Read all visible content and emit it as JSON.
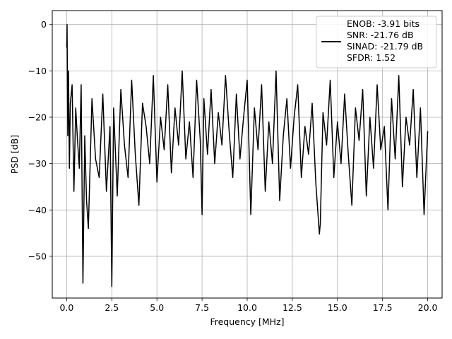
{
  "chart_data": {
    "type": "line",
    "title": "",
    "xlabel": "Frequency [MHz]",
    "ylabel": "PSD [dB]",
    "xlim": [
      -0.8,
      20.8
    ],
    "ylim": [
      -59,
      3
    ],
    "xticks": [
      0.0,
      2.5,
      5.0,
      7.5,
      10.0,
      12.5,
      15.0,
      17.5,
      20.0
    ],
    "xtick_labels": [
      "0.0",
      "2.5",
      "5.0",
      "7.5",
      "10.0",
      "12.5",
      "15.0",
      "17.5",
      "20.0"
    ],
    "yticks": [
      0,
      -10,
      -20,
      -30,
      -40,
      -50
    ],
    "ytick_labels": [
      "0",
      "−10",
      "−20",
      "−30",
      "−40",
      "−50"
    ],
    "grid": true,
    "legend_position": "top-right",
    "series": [
      {
        "color": "#000000",
        "legend_lines": [
          "ENOB: -3.91 bits",
          "SNR: -21.76 dB",
          "SINAD: -21.79 dB",
          "SFDR: 1.52"
        ],
        "x": [
          0.0,
          0.02,
          0.04,
          0.06,
          0.1,
          0.15,
          0.2,
          0.3,
          0.4,
          0.5,
          0.6,
          0.7,
          0.8,
          0.9,
          1.0,
          1.1,
          1.2,
          1.4,
          1.6,
          1.8,
          2.0,
          2.2,
          2.4,
          2.5,
          2.6,
          2.8,
          3.0,
          3.2,
          3.4,
          3.6,
          3.8,
          4.0,
          4.2,
          4.4,
          4.6,
          4.8,
          5.0,
          5.2,
          5.4,
          5.6,
          5.8,
          6.0,
          6.2,
          6.4,
          6.6,
          6.8,
          7.0,
          7.2,
          7.4,
          7.5,
          7.6,
          7.8,
          8.0,
          8.2,
          8.4,
          8.6,
          8.8,
          9.0,
          9.2,
          9.4,
          9.6,
          9.8,
          10.0,
          10.2,
          10.4,
          10.6,
          10.8,
          11.0,
          11.2,
          11.4,
          11.6,
          11.8,
          12.0,
          12.2,
          12.4,
          12.6,
          12.8,
          13.0,
          13.2,
          13.4,
          13.6,
          13.8,
          14.0,
          14.05,
          14.2,
          14.4,
          14.6,
          14.8,
          15.0,
          15.2,
          15.4,
          15.6,
          15.8,
          16.0,
          16.2,
          16.4,
          16.6,
          16.8,
          17.0,
          17.2,
          17.4,
          17.6,
          17.8,
          18.0,
          18.2,
          18.4,
          18.6,
          18.8,
          19.0,
          19.2,
          19.4,
          19.6,
          19.8,
          20.0
        ],
        "y": [
          -5,
          0,
          -12,
          -24,
          -10,
          -31,
          -17,
          -13,
          -36,
          -18,
          -25,
          -31,
          -13,
          -55.8,
          -24,
          -38,
          -44,
          -16,
          -29,
          -33,
          -15,
          -36,
          -22,
          -56.5,
          -18,
          -37,
          -14,
          -26,
          -33,
          -12,
          -28,
          -39,
          -17,
          -22,
          -30,
          -11,
          -34,
          -20,
          -27,
          -13,
          -32,
          -18,
          -26,
          -10,
          -29,
          -21,
          -33,
          -12,
          -25,
          -41,
          -16,
          -28,
          -14,
          -30,
          -19,
          -26,
          -11,
          -23,
          -33,
          -15,
          -29,
          -20,
          -12,
          -41,
          -18,
          -27,
          -13,
          -36,
          -21,
          -30,
          -10,
          -38,
          -24,
          -16,
          -31,
          -20,
          -13,
          -33,
          -22,
          -28,
          -17,
          -34,
          -45.2,
          -43,
          -19,
          -26,
          -12,
          -33,
          -21,
          -30,
          -15,
          -28,
          -39,
          -18,
          -25,
          -14,
          -37,
          -20,
          -31,
          -13,
          -27,
          -22,
          -40,
          -16,
          -29,
          -11,
          -35,
          -20,
          -26,
          -14,
          -33,
          -18,
          -41,
          -23
        ]
      }
    ]
  }
}
